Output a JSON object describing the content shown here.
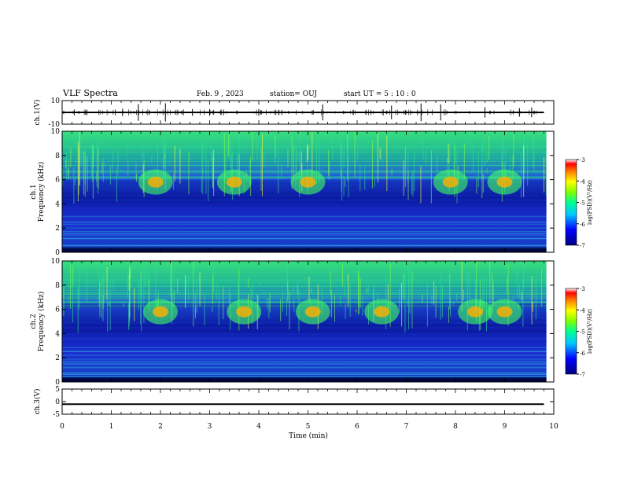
{
  "header": {
    "title": "VLF Spectra",
    "date": "Feb. 9 , 2023",
    "station": "station= OUJ",
    "start": "start UT = 5 : 10 : 0"
  },
  "chart_data": {
    "type": "heatmap",
    "x_axis": {
      "label": "Time (min)",
      "range": [
        0,
        10
      ],
      "ticks": [
        "0",
        "1",
        "2",
        "3",
        "4",
        "5",
        "6",
        "7",
        "8",
        "9",
        "10"
      ]
    },
    "panels": [
      {
        "id": "ch1-waveform",
        "type": "line",
        "ylabel": "ch.1(V)",
        "ylim": [
          -10,
          10
        ],
        "yticks": [
          "10",
          "-10"
        ],
        "baseline": 0,
        "spikes_min": [
          1.23,
          1.55,
          2.1,
          2.65,
          3.0,
          4.0,
          5.3,
          6.7,
          7.3,
          7.7,
          8.6,
          9.3,
          9.55
        ]
      },
      {
        "id": "ch1-spectrogram",
        "type": "heatmap",
        "ylabel": "ch.1\nFrequency (kHz)",
        "ylim": [
          0,
          10
        ],
        "yticks": [
          "0",
          "2",
          "4",
          "6",
          "8",
          "10"
        ],
        "colorbar": {
          "label": "log(PSD)(V²/Hz)",
          "range": [
            -7,
            -3
          ],
          "ticks": [
            "-3",
            "-4",
            "-5",
            "-6",
            "-7"
          ]
        },
        "emission_bursts_min": [
          1.9,
          3.5,
          5.0,
          7.9,
          9.0
        ],
        "band_kHz": [
          4.0,
          6.0
        ]
      },
      {
        "id": "ch2-spectrogram",
        "type": "heatmap",
        "ylabel": "ch.2\nFrequency (kHz)",
        "ylim": [
          0,
          10
        ],
        "yticks": [
          "0",
          "2",
          "4",
          "6",
          "8",
          "10"
        ],
        "colorbar": {
          "label": "log(PSD)(V²/Hz)",
          "range": [
            -7,
            -3
          ],
          "ticks": [
            "-3",
            "-4",
            "-5",
            "-6",
            "-7"
          ]
        },
        "emission_bursts_min": [
          2.0,
          3.7,
          5.1,
          6.5,
          8.4,
          9.0
        ],
        "band_kHz": [
          4.0,
          6.5
        ]
      },
      {
        "id": "ch3-waveform",
        "type": "line",
        "ylabel": "ch.3(V)",
        "ylim": [
          -5,
          5
        ],
        "yticks": [
          "5",
          "0",
          "-5"
        ],
        "baseline": -1
      }
    ]
  },
  "colors": {
    "cmap": [
      "#00008b",
      "#0000ff",
      "#00bfff",
      "#00ff80",
      "#80ff00",
      "#ffff00",
      "#ff8000",
      "#ff0000",
      "#ffffff"
    ],
    "line": "#000000"
  }
}
